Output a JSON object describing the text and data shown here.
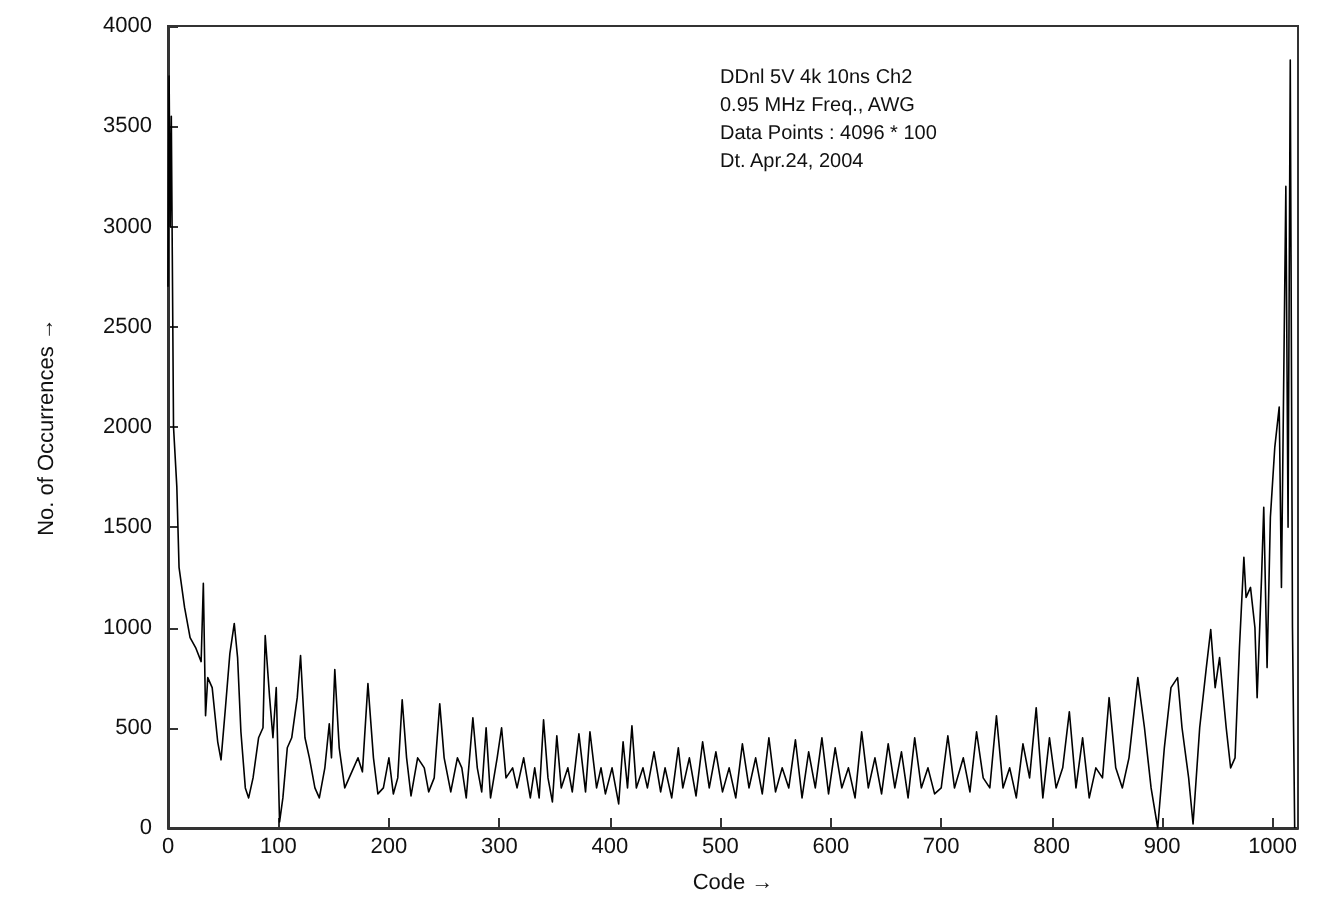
{
  "chart_data": {
    "type": "line",
    "xlabel": "Code →",
    "ylabel": "No. of Occurrences →",
    "annotations": [
      "DDnl 5V 4k 10ns Ch2",
      "0.95 MHz Freq., AWG",
      "Data Points : 4096 * 100",
      "Dt. Apr.24, 2004"
    ],
    "xlim": [
      0,
      1023
    ],
    "xticks": [
      0,
      100,
      200,
      300,
      400,
      500,
      600,
      700,
      800,
      900,
      1000
    ],
    "ylim": [
      0,
      4000
    ],
    "yticks": [
      0,
      500,
      1000,
      1500,
      2000,
      2500,
      3000,
      3500,
      4000
    ],
    "marker": "none",
    "line_style": "solid",
    "series": [
      {
        "color": "#000000",
        "x": [
          0,
          1,
          2,
          3,
          5,
          8,
          10,
          15,
          20,
          25,
          30,
          32,
          34,
          36,
          40,
          45,
          48,
          52,
          56,
          60,
          63,
          66,
          70,
          73,
          77,
          82,
          86,
          88,
          92,
          95,
          98,
          101,
          104,
          108,
          112,
          117,
          120,
          124,
          128,
          133,
          137,
          142,
          146,
          148,
          151,
          155,
          160,
          164,
          168,
          172,
          176,
          181,
          186,
          190,
          195,
          200,
          204,
          208,
          212,
          216,
          220,
          226,
          232,
          236,
          241,
          246,
          250,
          256,
          262,
          266,
          270,
          276,
          280,
          284,
          288,
          292,
          298,
          302,
          306,
          312,
          316,
          322,
          328,
          332,
          336,
          340,
          344,
          348,
          352,
          356,
          362,
          366,
          372,
          378,
          382,
          388,
          392,
          396,
          402,
          408,
          412,
          416,
          420,
          424,
          430,
          434,
          440,
          446,
          450,
          456,
          462,
          466,
          472,
          478,
          484,
          490,
          496,
          502,
          508,
          514,
          520,
          526,
          532,
          538,
          544,
          550,
          556,
          562,
          568,
          574,
          580,
          586,
          592,
          598,
          604,
          610,
          616,
          622,
          628,
          634,
          640,
          646,
          652,
          658,
          664,
          670,
          676,
          682,
          688,
          694,
          700,
          706,
          712,
          720,
          726,
          732,
          738,
          744,
          750,
          756,
          762,
          768,
          774,
          780,
          786,
          792,
          798,
          804,
          810,
          816,
          822,
          828,
          834,
          840,
          846,
          852,
          858,
          864,
          870,
          878,
          884,
          890,
          896,
          902,
          908,
          914,
          918,
          924,
          928,
          934,
          940,
          944,
          948,
          952,
          958,
          962,
          966,
          970,
          974,
          976,
          980,
          984,
          986,
          990,
          992,
          995,
          998,
          1002,
          1006,
          1008,
          1012,
          1014,
          1016,
          1018,
          1020
        ],
        "values": [
          2700,
          3750,
          3000,
          3550,
          2000,
          1700,
          1300,
          1100,
          950,
          900,
          830,
          1220,
          560,
          750,
          700,
          430,
          340,
          600,
          870,
          1020,
          850,
          480,
          200,
          150,
          250,
          450,
          500,
          960,
          650,
          450,
          700,
          30,
          150,
          400,
          450,
          650,
          860,
          450,
          350,
          200,
          150,
          300,
          520,
          350,
          790,
          400,
          200,
          250,
          300,
          350,
          280,
          720,
          350,
          170,
          200,
          350,
          170,
          250,
          640,
          350,
          160,
          350,
          300,
          180,
          250,
          620,
          350,
          180,
          350,
          300,
          150,
          550,
          300,
          180,
          500,
          150,
          350,
          500,
          250,
          300,
          200,
          350,
          150,
          300,
          150,
          540,
          250,
          130,
          460,
          200,
          300,
          180,
          470,
          180,
          480,
          200,
          300,
          170,
          300,
          120,
          430,
          200,
          510,
          200,
          300,
          200,
          380,
          180,
          300,
          150,
          400,
          200,
          350,
          160,
          430,
          200,
          380,
          180,
          300,
          150,
          420,
          200,
          350,
          170,
          450,
          180,
          300,
          200,
          440,
          150,
          380,
          200,
          450,
          170,
          400,
          200,
          300,
          150,
          480,
          200,
          350,
          170,
          420,
          200,
          380,
          150,
          450,
          200,
          300,
          170,
          200,
          460,
          200,
          350,
          180,
          480,
          250,
          200,
          560,
          200,
          300,
          150,
          420,
          250,
          600,
          150,
          450,
          200,
          300,
          580,
          200,
          450,
          150,
          300,
          250,
          650,
          300,
          200,
          350,
          750,
          500,
          200,
          0,
          400,
          700,
          750,
          500,
          250,
          20,
          500,
          800,
          990,
          700,
          850,
          500,
          300,
          350,
          900,
          1350,
          1150,
          1200,
          1000,
          650,
          1250,
          1600,
          800,
          1550,
          1900,
          2100,
          1200,
          3200,
          1500,
          3830,
          1000,
          0
        ]
      }
    ]
  }
}
